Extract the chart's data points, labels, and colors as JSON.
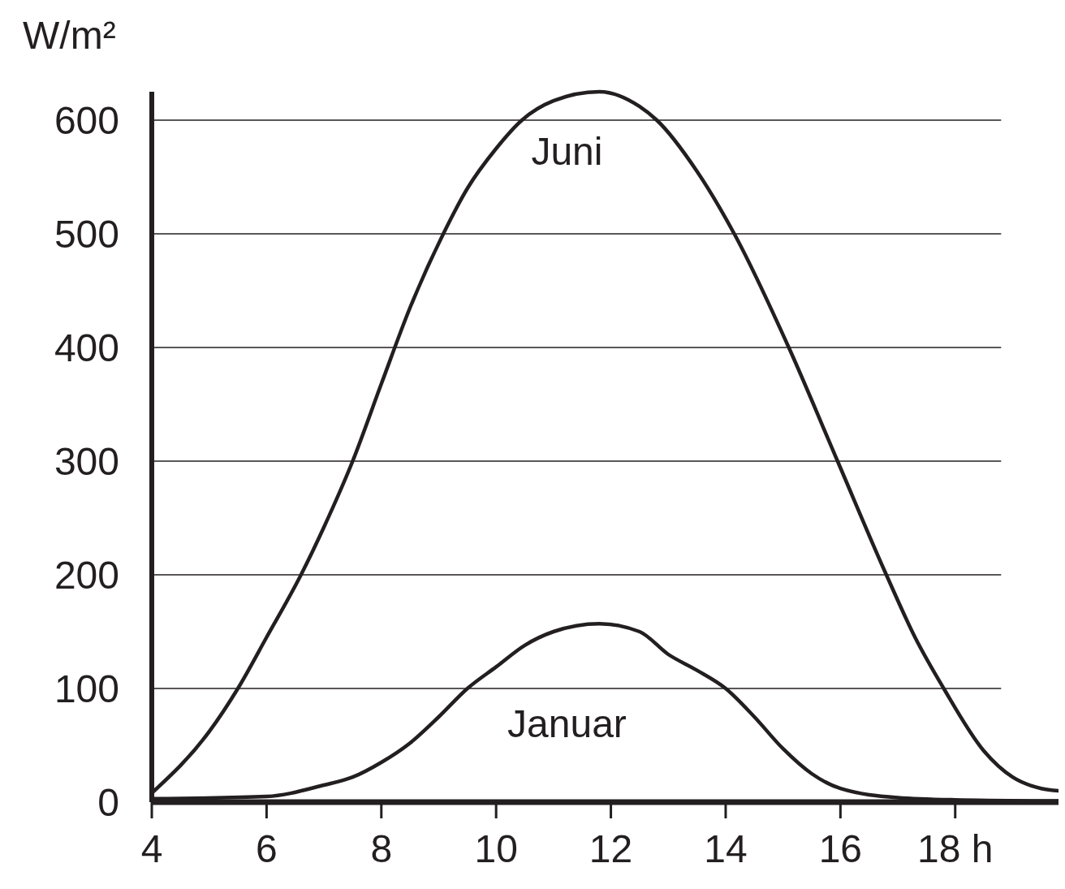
{
  "chart_data": {
    "type": "line",
    "ylabel": "W/m²",
    "xlim": [
      4,
      19.8
    ],
    "xticks": [
      4,
      6,
      8,
      10,
      12,
      14,
      16,
      {
        "value": 18,
        "label": "18 h"
      }
    ],
    "ylim": [
      0,
      625
    ],
    "yticks": [
      0,
      100,
      200,
      300,
      400,
      500,
      600
    ],
    "grid": "y",
    "marker": "none",
    "line_style": "solid",
    "series": [
      {
        "name": "Juni",
        "color": "#231f20",
        "x": [
          4,
          5,
          5.5,
          6,
          6.6,
          7,
          7.5,
          8,
          8.5,
          9.08,
          9.5,
          10,
          10.45,
          11,
          11.8,
          12.5,
          12.8,
          13.5,
          14.15,
          15.1,
          15.95,
          16.8,
          17.3,
          17.8,
          18.5,
          19,
          19.5,
          19.8
        ],
        "values": [
          8,
          62,
          100,
          145,
          200,
          242,
          300,
          368,
          435,
          500,
          540,
          575,
          600,
          617,
          625,
          612,
          600,
          555,
          500,
          400,
          300,
          200,
          145,
          100,
          45,
          22,
          12,
          10
        ]
      },
      {
        "name": "Januar",
        "color": "#231f20",
        "x": [
          4,
          6,
          7,
          7.5,
          8,
          8.5,
          9,
          9.5,
          10,
          10.5,
          11,
          11.8,
          12.5,
          13,
          13.5,
          14,
          14.5,
          15,
          15.5,
          16,
          17,
          18,
          19.8
        ],
        "values": [
          3,
          5,
          15,
          22,
          35,
          52,
          75,
          100,
          119,
          138,
          150,
          157,
          150,
          130,
          116,
          100,
          75,
          47,
          25,
          12,
          4,
          2,
          1
        ]
      }
    ]
  }
}
